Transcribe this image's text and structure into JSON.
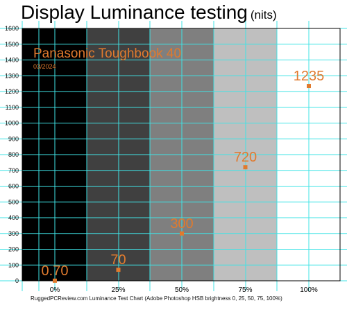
{
  "title": "Display Luminance testing",
  "title_unit": "(nits)",
  "device": "Panasonic Toughbook 40",
  "date": "03/2024",
  "footer": "RuggedPCReview.com Luminance Test Chart (Adobe Photoshop HSB brightness 0, 25, 50, 75, 100%)",
  "colors": {
    "accent": "#E07A2E",
    "grid": "#3FE3E6",
    "bands": [
      "#000000",
      "#404040",
      "#7f7f7f",
      "#bfbfbf",
      "#ffffff"
    ]
  },
  "chart_data": {
    "type": "scatter",
    "categories": [
      "0%",
      "25%",
      "50%",
      "75%",
      "100%"
    ],
    "values": [
      0.7,
      70,
      300,
      720,
      1235
    ],
    "value_labels": [
      "0.70",
      "70",
      "300",
      "720",
      "1235"
    ],
    "ylim": [
      0,
      1600
    ],
    "yticks": [
      0,
      100,
      200,
      300,
      400,
      500,
      600,
      700,
      800,
      900,
      1000,
      1100,
      1200,
      1300,
      1400,
      1500,
      1600
    ],
    "grid": true
  }
}
